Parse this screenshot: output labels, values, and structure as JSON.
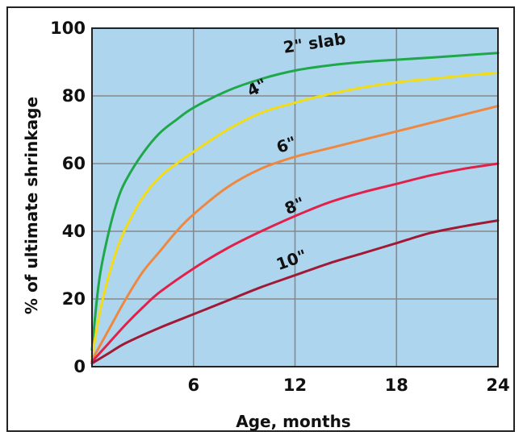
{
  "chart_data": {
    "type": "line",
    "title": "",
    "xlabel": "Age, months",
    "ylabel": "% of ultimate shrinkage",
    "xlim": [
      0,
      24
    ],
    "ylim": [
      0,
      100
    ],
    "xticks": [
      "6",
      "12",
      "18",
      "24"
    ],
    "yticks": [
      "0",
      "20",
      "40",
      "60",
      "80",
      "100"
    ],
    "grid": true,
    "plot_background": "#aed5ee",
    "grid_color": "#888888",
    "series": [
      {
        "name": "2\" slab",
        "color": "#1fa84a",
        "x": [
          0,
          0.25,
          0.5,
          1,
          1.5,
          2,
          3,
          4,
          5,
          6,
          8,
          10,
          12,
          14,
          16,
          18,
          20,
          22,
          24
        ],
        "values": [
          5,
          18,
          28,
          40,
          49,
          55,
          63,
          69,
          73,
          76.5,
          81.5,
          85,
          87.5,
          89,
          90,
          90.7,
          91.3,
          92,
          92.7
        ]
      },
      {
        "name": "4\"",
        "color": "#f2dc17",
        "x": [
          0,
          0.5,
          1,
          1.5,
          2,
          3,
          4,
          5,
          6,
          8,
          10,
          12,
          14,
          16,
          18,
          20,
          22,
          24
        ],
        "values": [
          3,
          17,
          27,
          35,
          41,
          50,
          56,
          60,
          63.5,
          70,
          75,
          78,
          80.5,
          82.5,
          84,
          85,
          86,
          86.8
        ]
      },
      {
        "name": "6\"",
        "color": "#ee8840",
        "x": [
          0,
          1,
          2,
          3,
          4,
          5,
          6,
          8,
          10,
          12,
          14,
          16,
          18,
          20,
          22,
          24
        ],
        "values": [
          2,
          11,
          20,
          28,
          34,
          40,
          45,
          53,
          58.5,
          62,
          64.5,
          67,
          69.5,
          72,
          74.5,
          77
        ]
      },
      {
        "name": "8\"",
        "color": "#e0224b",
        "x": [
          0,
          1,
          2,
          3,
          4,
          6,
          8,
          10,
          12,
          14,
          16,
          18,
          20,
          22,
          24
        ],
        "values": [
          1.5,
          7,
          12.5,
          17.5,
          22,
          29,
          35,
          40,
          44.5,
          48.5,
          51.5,
          54,
          56.5,
          58.5,
          60
        ]
      },
      {
        "name": "10\"",
        "color": "#a01a35",
        "x": [
          0,
          1,
          2,
          4,
          6,
          8,
          10,
          12,
          14,
          16,
          18,
          20,
          22,
          24
        ],
        "values": [
          1,
          4,
          7,
          11.5,
          15.5,
          19.5,
          23.5,
          27,
          30.5,
          33.5,
          36.5,
          39.5,
          41.5,
          43.2
        ]
      }
    ],
    "labels": [
      {
        "text": "2\" slab",
        "series": 0,
        "x": 13.2,
        "y": 94
      },
      {
        "text": "4\"",
        "series": 1,
        "x": 9.9,
        "y": 81
      },
      {
        "text": "6\"",
        "series": 2,
        "x": 11.6,
        "y": 64
      },
      {
        "text": "8\"",
        "series": 3,
        "x": 12.1,
        "y": 46
      },
      {
        "text": "10\"",
        "series": 4,
        "x": 11.9,
        "y": 30
      }
    ]
  }
}
